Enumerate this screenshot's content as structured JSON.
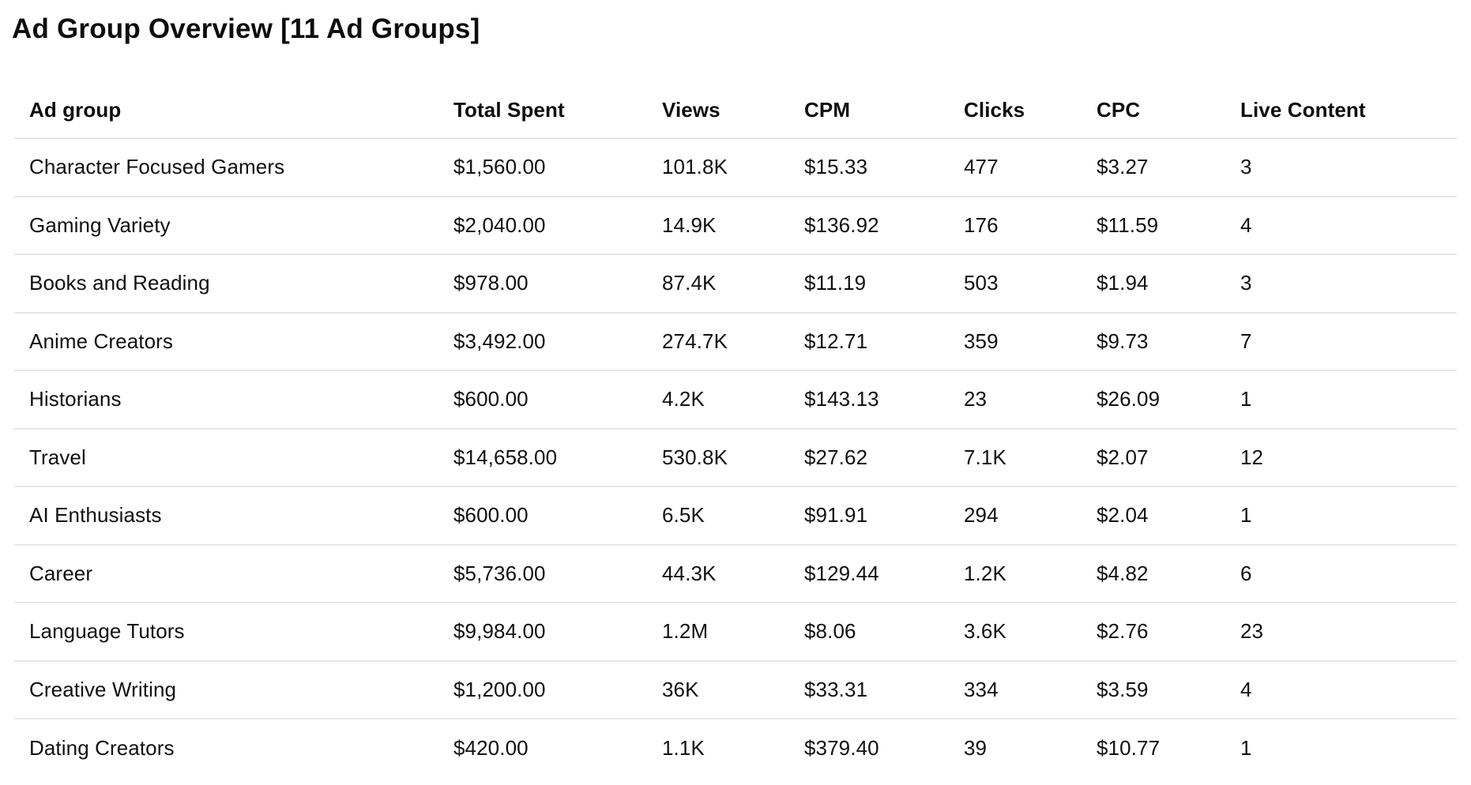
{
  "page": {
    "title": "Ad Group Overview [11 Ad Groups]"
  },
  "table": {
    "columns": {
      "ad_group": "Ad group",
      "total_spent": "Total Spent",
      "views": "Views",
      "cpm": "CPM",
      "clicks": "Clicks",
      "cpc": "CPC",
      "live_content": "Live Content"
    },
    "rows": [
      {
        "ad_group": "Character Focused Gamers",
        "total_spent": "$1,560.00",
        "views": "101.8K",
        "cpm": "$15.33",
        "clicks": "477",
        "cpc": "$3.27",
        "live_content": "3"
      },
      {
        "ad_group": "Gaming Variety",
        "total_spent": "$2,040.00",
        "views": "14.9K",
        "cpm": "$136.92",
        "clicks": "176",
        "cpc": "$11.59",
        "live_content": "4"
      },
      {
        "ad_group": "Books and Reading",
        "total_spent": "$978.00",
        "views": "87.4K",
        "cpm": "$11.19",
        "clicks": "503",
        "cpc": "$1.94",
        "live_content": "3"
      },
      {
        "ad_group": "Anime Creators",
        "total_spent": "$3,492.00",
        "views": "274.7K",
        "cpm": "$12.71",
        "clicks": "359",
        "cpc": "$9.73",
        "live_content": "7"
      },
      {
        "ad_group": "Historians",
        "total_spent": "$600.00",
        "views": "4.2K",
        "cpm": "$143.13",
        "clicks": "23",
        "cpc": "$26.09",
        "live_content": "1"
      },
      {
        "ad_group": "Travel",
        "total_spent": "$14,658.00",
        "views": "530.8K",
        "cpm": "$27.62",
        "clicks": "7.1K",
        "cpc": "$2.07",
        "live_content": "12"
      },
      {
        "ad_group": "AI Enthusiasts",
        "total_spent": "$600.00",
        "views": "6.5K",
        "cpm": "$91.91",
        "clicks": "294",
        "cpc": "$2.04",
        "live_content": "1"
      },
      {
        "ad_group": "Career",
        "total_spent": "$5,736.00",
        "views": "44.3K",
        "cpm": "$129.44",
        "clicks": "1.2K",
        "cpc": "$4.82",
        "live_content": "6"
      },
      {
        "ad_group": "Language Tutors",
        "total_spent": "$9,984.00",
        "views": "1.2M",
        "cpm": "$8.06",
        "clicks": "3.6K",
        "cpc": "$2.76",
        "live_content": "23"
      },
      {
        "ad_group": "Creative Writing",
        "total_spent": "$1,200.00",
        "views": "36K",
        "cpm": "$33.31",
        "clicks": "334",
        "cpc": "$3.59",
        "live_content": "4"
      },
      {
        "ad_group": "Dating Creators",
        "total_spent": "$420.00",
        "views": "1.1K",
        "cpm": "$379.40",
        "clicks": "39",
        "cpc": "$10.77",
        "live_content": "1"
      }
    ]
  }
}
